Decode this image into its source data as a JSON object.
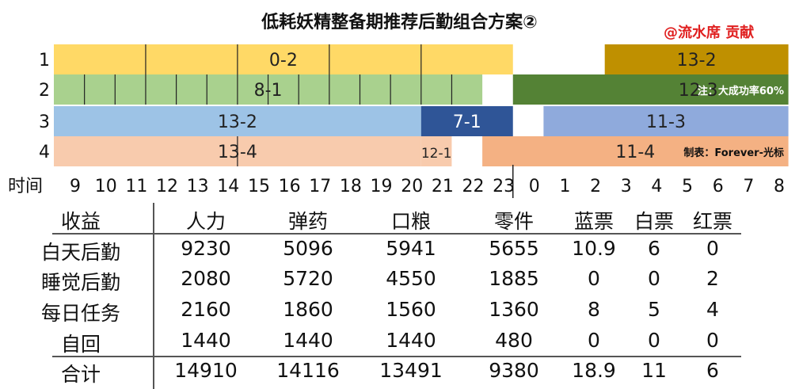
{
  "title": "低耗妖精整备期推荐后勤组合方案②",
  "credit": "@流水席  贡献",
  "chart_data": {
    "type": "gantt",
    "hour_axis_label": "时间",
    "hours": [
      9,
      10,
      11,
      12,
      13,
      14,
      15,
      16,
      17,
      18,
      19,
      20,
      21,
      22,
      23,
      0,
      1,
      2,
      3,
      4,
      5,
      6,
      7,
      8
    ],
    "rows": [
      {
        "label": "1",
        "bars": [
          {
            "name": "0-2",
            "start": 0,
            "end": 15,
            "color": "#ffd966",
            "ticks": [
              3,
              6,
              9,
              12
            ]
          },
          {
            "name": "13-2",
            "start": 18,
            "end": 24,
            "color": "#bf9000",
            "ticks": []
          }
        ]
      },
      {
        "label": "2",
        "bars": [
          {
            "name": "8-1",
            "start": 0,
            "end": 14,
            "color": "#a9d18e",
            "ticks": [
              1,
              2,
              3,
              4,
              5,
              6,
              7,
              8,
              9,
              10,
              11,
              12,
              13
            ]
          },
          {
            "name": "12-3",
            "start": 15,
            "end": 24,
            "color": "#548235",
            "ticks": []
          }
        ]
      },
      {
        "label": "3",
        "bars": [
          {
            "name": "13-2",
            "start": 0,
            "end": 12,
            "color": "#9dc3e6",
            "ticks": []
          },
          {
            "name": "7-1",
            "start": 12,
            "end": 15,
            "color": "#2f5597",
            "ticks": []
          },
          {
            "name": "11-3",
            "start": 16,
            "end": 24,
            "color": "#8faadc",
            "ticks": []
          }
        ]
      },
      {
        "label": "4",
        "bars": [
          {
            "name": "13-4",
            "start": 0,
            "end": 12,
            "color": "#f8cbad",
            "ticks": [
              6
            ]
          },
          {
            "name": "12-1",
            "start": 12,
            "end": 13,
            "color": "#f8cbad",
            "ticks": []
          },
          {
            "name": "11-4",
            "start": 14,
            "end": 24,
            "color": "#f4b183",
            "ticks": []
          }
        ]
      }
    ],
    "annotations": [
      {
        "row": 1,
        "text": "注：大成功率60%",
        "color": "#ffffff"
      },
      {
        "row": 3,
        "text": "制表：Forever-光标",
        "color": "#111111"
      }
    ],
    "divider_at": 15
  },
  "table": {
    "headers": [
      "收益",
      "人力",
      "弹药",
      "口粮",
      "零件",
      "蓝票",
      "白票",
      "红票"
    ],
    "rows": [
      [
        "白天后勤",
        "9230",
        "5096",
        "5941",
        "5655",
        "10.9",
        "6",
        "0"
      ],
      [
        "睡觉后勤",
        "2080",
        "5720",
        "4550",
        "1885",
        "0",
        "0",
        "2"
      ],
      [
        "每日任务",
        "2160",
        "1860",
        "1560",
        "1360",
        "8",
        "5",
        "4"
      ],
      [
        "自回",
        "1440",
        "1440",
        "1440",
        "480",
        "0",
        "0",
        "0"
      ]
    ],
    "total": [
      "合计",
      "14910",
      "14116",
      "13491",
      "9380",
      "18.9",
      "11",
      "6"
    ]
  }
}
